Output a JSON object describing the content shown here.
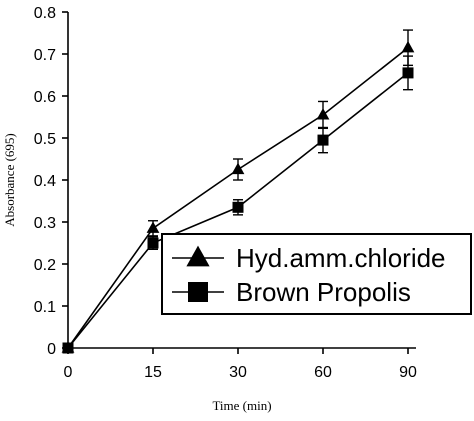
{
  "chart_data": {
    "type": "line",
    "title": "",
    "xlabel": "Time (min)",
    "ylabel": "Absorbance (695)",
    "categories": [
      "0",
      "15",
      "30",
      "60",
      "90"
    ],
    "ylim": [
      0,
      0.8
    ],
    "yticks": [
      "0",
      "0.1",
      "0.2",
      "0.3",
      "0.4",
      "0.5",
      "0.6",
      "0.7",
      "0.8"
    ],
    "grid": false,
    "legend_position": "lower-right",
    "series": [
      {
        "name": "Hyd.amm.chloride",
        "marker": "triangle",
        "color": "#000000",
        "values": [
          0,
          0.285,
          0.425,
          0.555,
          0.715
        ],
        "errors": [
          0,
          0.018,
          0.025,
          0.032,
          0.042
        ]
      },
      {
        "name": "Brown Propolis",
        "marker": "square",
        "color": "#000000",
        "values": [
          0,
          0.25,
          0.335,
          0.495,
          0.655
        ],
        "errors": [
          0,
          0.015,
          0.018,
          0.03,
          0.04
        ]
      }
    ]
  }
}
